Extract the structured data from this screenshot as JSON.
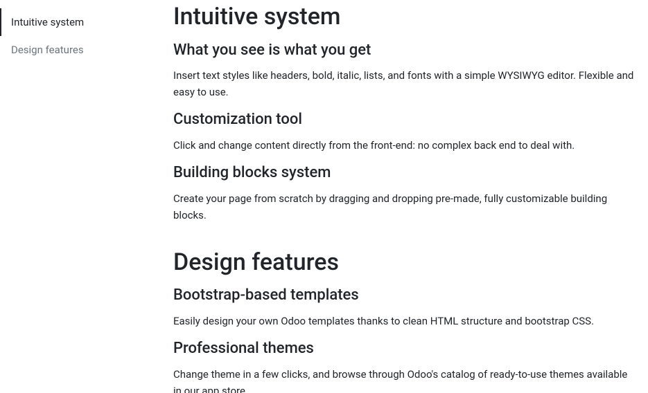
{
  "sidebar": {
    "items": [
      {
        "label": "Intuitive system",
        "active": true
      },
      {
        "label": "Design features",
        "active": false
      }
    ]
  },
  "sections": [
    {
      "title": "Intuitive system",
      "subsections": [
        {
          "heading": "What you see is what you get",
          "body": "Insert text styles like headers, bold, italic, lists, and fonts with a simple WYSIWYG editor. Flexible and easy to use."
        },
        {
          "heading": "Customization tool",
          "body": "Click and change content directly from the front-end: no complex back end to deal with."
        },
        {
          "heading": "Building blocks system",
          "body": "Create your page from scratch by dragging and dropping pre-made, fully customizable building blocks."
        }
      ]
    },
    {
      "title": "Design features",
      "subsections": [
        {
          "heading": "Bootstrap-based templates",
          "body": "Easily design your own Odoo templates thanks to clean HTML structure and bootstrap CSS."
        },
        {
          "heading": "Professional themes",
          "body": "Change theme in a few clicks, and browse through Odoo's catalog of ready-to-use themes available in our app store."
        }
      ]
    }
  ]
}
